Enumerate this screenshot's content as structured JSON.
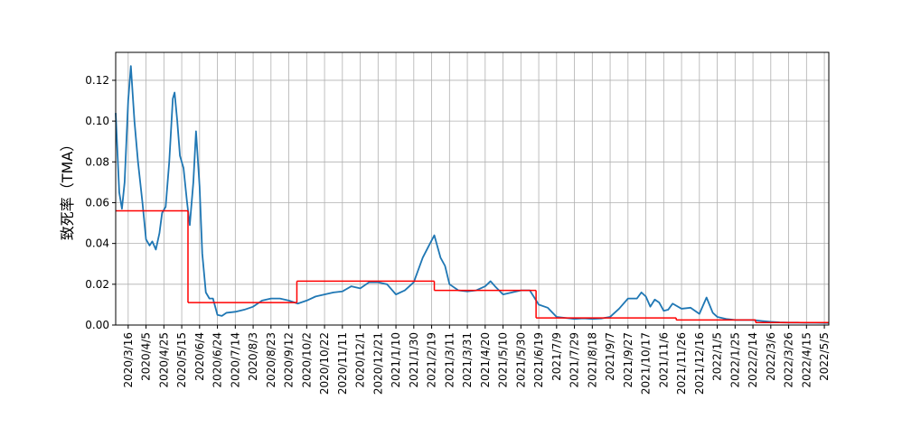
{
  "chart_data": {
    "type": "line",
    "ylabel": "致死率（TMA）",
    "xlim": [
      "2020/3/2",
      "2022/5/10"
    ],
    "xticks": [
      "2020/3/16",
      "2020/4/5",
      "2020/4/25",
      "2020/5/15",
      "2020/6/4",
      "2020/6/24",
      "2020/7/14",
      "2020/8/3",
      "2020/8/23",
      "2020/9/12",
      "2020/10/2",
      "2020/10/22",
      "2020/11/11",
      "2020/12/1",
      "2020/12/21",
      "2021/1/10",
      "2021/1/30",
      "2021/2/19",
      "2021/3/11",
      "2021/3/31",
      "2021/4/20",
      "2021/5/10",
      "2021/5/30",
      "2021/6/19",
      "2021/7/9",
      "2021/7/29",
      "2021/8/18",
      "2021/9/7",
      "2021/9/27",
      "2021/10/17",
      "2021/11/6",
      "2021/11/26",
      "2021/12/16",
      "2022/1/5",
      "2022/1/25",
      "2022/2/14",
      "2022/3/6",
      "2022/3/26",
      "2022/4/15",
      "2022/5/5"
    ],
    "ylim": [
      0,
      0.1337
    ],
    "yticks": [
      {
        "value": 0,
        "label": "0.00"
      },
      {
        "value": 0.02,
        "label": "0.02"
      },
      {
        "value": 0.04,
        "label": "0.04"
      },
      {
        "value": 0.06,
        "label": "0.06"
      },
      {
        "value": 0.08,
        "label": "0.08"
      },
      {
        "value": 0.1,
        "label": "0.10"
      },
      {
        "value": 0.12,
        "label": "0.12"
      }
    ],
    "grid": true,
    "series": [
      {
        "color": "#1f77b4",
        "drawstyle": "default",
        "x": [
          "2020/3/2",
          "2020/3/6",
          "2020/3/9",
          "2020/3/12",
          "2020/3/16",
          "2020/3/19",
          "2020/3/23",
          "2020/3/27",
          "2020/4/1",
          "2020/4/5",
          "2020/4/9",
          "2020/4/12",
          "2020/4/16",
          "2020/4/20",
          "2020/4/23",
          "2020/4/27",
          "2020/5/1",
          "2020/5/5",
          "2020/5/7",
          "2020/5/10",
          "2020/5/13",
          "2020/5/17",
          "2020/5/21",
          "2020/5/24",
          "2020/5/28",
          "2020/5/31",
          "2020/6/4",
          "2020/6/7",
          "2020/6/11",
          "2020/6/15",
          "2020/6/19",
          "2020/6/24",
          "2020/6/29",
          "2020/7/4",
          "2020/7/14",
          "2020/7/24",
          "2020/8/3",
          "2020/8/13",
          "2020/8/23",
          "2020/9/2",
          "2020/9/12",
          "2020/9/22",
          "2020/10/2",
          "2020/10/12",
          "2020/10/22",
          "2020/11/1",
          "2020/11/11",
          "2020/11/21",
          "2020/12/1",
          "2020/12/11",
          "2020/12/21",
          "2020/12/31",
          "2021/1/10",
          "2021/1/20",
          "2021/1/30",
          "2021/2/9",
          "2021/2/16",
          "2021/2/22",
          "2021/3/1",
          "2021/3/6",
          "2021/3/11",
          "2021/3/21",
          "2021/3/31",
          "2021/4/10",
          "2021/4/20",
          "2021/4/26",
          "2021/5/1",
          "2021/5/10",
          "2021/5/20",
          "2021/5/30",
          "2021/6/9",
          "2021/6/19",
          "2021/6/29",
          "2021/7/9",
          "2021/7/19",
          "2021/7/29",
          "2021/8/8",
          "2021/8/18",
          "2021/8/28",
          "2021/9/7",
          "2021/9/17",
          "2021/9/27",
          "2021/10/7",
          "2021/10/12",
          "2021/10/17",
          "2021/10/22",
          "2021/10/27",
          "2021/11/1",
          "2021/11/6",
          "2021/11/11",
          "2021/11/16",
          "2021/11/26",
          "2021/12/6",
          "2021/12/16",
          "2021/12/24",
          "2021/12/31",
          "2022/1/5",
          "2022/1/15",
          "2022/1/25",
          "2022/2/4",
          "2022/2/14",
          "2022/2/24",
          "2022/3/6",
          "2022/3/16",
          "2022/3/26",
          "2022/4/5",
          "2022/4/15",
          "2022/4/25",
          "2022/5/10"
        ],
        "values": [
          0.104,
          0.065,
          0.057,
          0.07,
          0.11,
          0.127,
          0.1,
          0.08,
          0.06,
          0.042,
          0.039,
          0.041,
          0.037,
          0.045,
          0.055,
          0.058,
          0.08,
          0.111,
          0.114,
          0.1,
          0.083,
          0.077,
          0.06,
          0.049,
          0.07,
          0.095,
          0.068,
          0.035,
          0.016,
          0.013,
          0.013,
          0.005,
          0.0045,
          0.006,
          0.0065,
          0.0075,
          0.009,
          0.012,
          0.013,
          0.013,
          0.012,
          0.0105,
          0.012,
          0.014,
          0.015,
          0.016,
          0.0165,
          0.019,
          0.018,
          0.021,
          0.021,
          0.02,
          0.015,
          0.017,
          0.021,
          0.033,
          0.039,
          0.044,
          0.033,
          0.029,
          0.02,
          0.017,
          0.0165,
          0.017,
          0.019,
          0.0215,
          0.019,
          0.015,
          0.016,
          0.017,
          0.017,
          0.01,
          0.0085,
          0.004,
          0.0035,
          0.003,
          0.0033,
          0.003,
          0.0032,
          0.004,
          0.008,
          0.013,
          0.013,
          0.016,
          0.014,
          0.009,
          0.0125,
          0.011,
          0.007,
          0.0075,
          0.0105,
          0.008,
          0.0085,
          0.0055,
          0.0135,
          0.006,
          0.004,
          0.003,
          0.0025,
          0.0025,
          0.0025,
          0.002,
          0.0016,
          0.0013,
          0.0012,
          0.0012,
          0.0011,
          0.0011,
          0.001
        ]
      },
      {
        "color": "#ff0000",
        "drawstyle": "steps-post",
        "x": [
          "2020/3/2",
          "2020/5/22",
          "2020/9/21",
          "2021/2/22",
          "2021/6/16",
          "2021/11/20",
          "2022/2/17"
        ],
        "values": [
          0.056,
          0.011,
          0.0215,
          0.017,
          0.0035,
          0.0025,
          0.0012
        ]
      }
    ]
  }
}
